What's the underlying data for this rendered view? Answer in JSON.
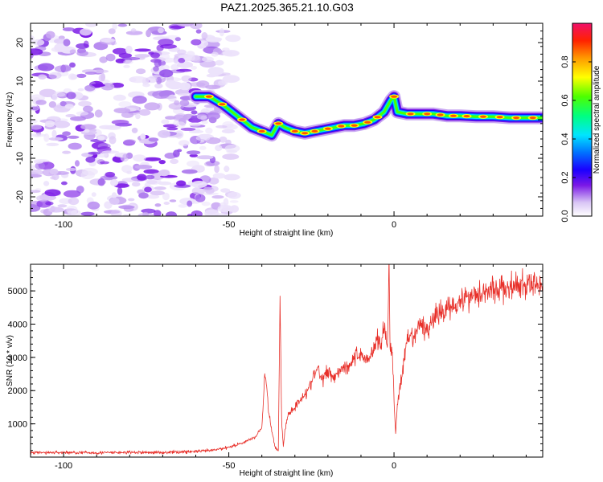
{
  "title": "PAZ1.2025.365.21.10.G03",
  "chart_data": [
    {
      "type": "heatmap",
      "xlabel": "Height of straight line (km)",
      "ylabel": "Frequency (Hz)",
      "xlim": [
        -110,
        45
      ],
      "ylim": [
        -25,
        25
      ],
      "x_ticks": [
        -100,
        -50,
        0
      ],
      "x_tick_labels": [
        "-100",
        "-50",
        "0"
      ],
      "y_ticks": [
        -20,
        -10,
        0,
        10,
        20
      ],
      "y_tick_labels": [
        "-20",
        "-10",
        "0",
        "10",
        "20"
      ],
      "colorbar": {
        "label": "Normalized spectral amplitude",
        "range": [
          0,
          1
        ],
        "ticks": [
          0.0,
          0.2,
          0.4,
          0.6,
          0.8
        ],
        "tick_labels": [
          "0.0",
          "0.2",
          "0.4",
          "0.6",
          "0.8"
        ]
      },
      "ridge": {
        "x": [
          -60,
          -56,
          -52,
          -49,
          -46,
          -43,
          -40,
          -37,
          -35,
          -33,
          -30,
          -27,
          -24,
          -21,
          -18,
          -15,
          -12,
          -9,
          -6,
          -3,
          -1,
          0,
          1,
          4,
          8,
          12,
          16,
          20,
          25,
          30,
          35,
          40,
          45
        ],
        "y": [
          6,
          6,
          4,
          2,
          0,
          -2,
          -3,
          -4,
          -1,
          -2,
          -3,
          -3.5,
          -3,
          -2.5,
          -2,
          -1.5,
          -1.5,
          -1,
          0,
          2,
          5,
          6,
          2,
          1.5,
          1.5,
          1.5,
          1,
          1,
          0.8,
          0.8,
          0.5,
          0.5,
          0.5
        ]
      },
      "noise_region_x": [
        -110,
        -50
      ]
    },
    {
      "type": "line",
      "xlabel": "Height of straight line (km)",
      "ylabel": "SNR (10 * v/v)",
      "xlim": [
        -110,
        45
      ],
      "ylim": [
        0,
        5800
      ],
      "x_ticks": [
        -100,
        -50,
        0
      ],
      "x_tick_labels": [
        "-100",
        "-50",
        "0"
      ],
      "y_ticks": [
        1000,
        2000,
        3000,
        4000,
        5000
      ],
      "y_tick_labels": [
        "1000",
        "2000",
        "3000",
        "4000",
        "5000"
      ],
      "series": [
        {
          "color": "#e8302a",
          "x": [
            -110,
            -100,
            -90,
            -80,
            -70,
            -60,
            -55,
            -50,
            -46,
            -42,
            -40,
            -39,
            -38,
            -37,
            -36,
            -35,
            -34.5,
            -34,
            -33.5,
            -33,
            -32,
            -30,
            -28,
            -26,
            -24,
            -23,
            -22,
            -20,
            -18,
            -16,
            -14,
            -12,
            -10,
            -8,
            -6,
            -5,
            -4,
            -3,
            -2,
            -1.5,
            -1.2,
            -1,
            -0.5,
            0,
            0.5,
            1,
            2,
            4,
            6,
            8,
            10,
            12,
            14,
            16,
            18,
            20,
            24,
            28,
            32,
            36,
            40,
            45
          ],
          "y": [
            130,
            140,
            130,
            140,
            140,
            170,
            200,
            300,
            420,
            600,
            900,
            2600,
            1400,
            800,
            300,
            200,
            4900,
            1100,
            300,
            800,
            1300,
            1500,
            1800,
            2000,
            2500,
            2700,
            2300,
            2600,
            2400,
            2700,
            2700,
            3000,
            3100,
            2900,
            3300,
            3600,
            3300,
            4000,
            3200,
            5800,
            3300,
            3400,
            3100,
            1700,
            700,
            1600,
            2200,
            3500,
            3600,
            4000,
            3800,
            4200,
            4300,
            4500,
            4600,
            4700,
            4900,
            5000,
            5050,
            5100,
            5150,
            5200
          ]
        }
      ]
    }
  ]
}
